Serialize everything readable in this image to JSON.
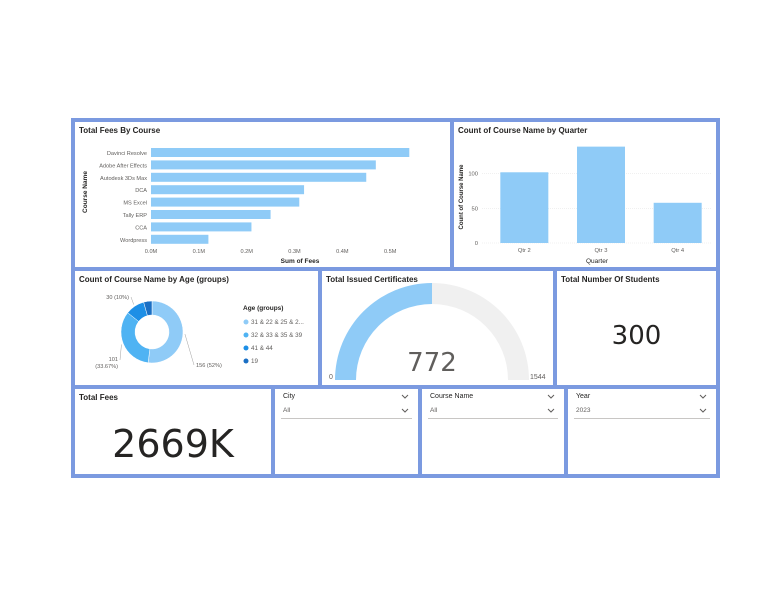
{
  "fees_by_course": {
    "title": "Total Fees By Course",
    "chart_data": {
      "type": "bar",
      "orientation": "horizontal",
      "title": "Total Fees By Course",
      "xlabel": "Sum of Fees",
      "ylabel": "Course Name",
      "categories": [
        "Davinci Resolve",
        "Adobe After Effects",
        "Autodesk 3Ds Max",
        "DCA",
        "MS Excel",
        "Tally ERP",
        "CCA",
        "Wordpress"
      ],
      "values": [
        0.54,
        0.47,
        0.45,
        0.32,
        0.31,
        0.25,
        0.21,
        0.12
      ],
      "ticks": [
        "0.0M",
        "0.1M",
        "0.2M",
        "0.3M",
        "0.4M",
        "0.5M"
      ],
      "xlim": [
        0,
        0.6
      ],
      "color": "#8fcbf7"
    }
  },
  "course_by_quarter": {
    "title": "Count of Course Name by Quarter",
    "chart_data": {
      "type": "bar",
      "title": "Count of Course Name by Quarter",
      "xlabel": "Quarter",
      "ylabel": "Count of Course Name",
      "categories": [
        "Qtr 2",
        "Qtr 3",
        "Qtr 4"
      ],
      "values": [
        102,
        139,
        58
      ],
      "ticks": [
        "0",
        "50",
        "100"
      ],
      "ylim": [
        0,
        150
      ],
      "color": "#8fcbf7"
    }
  },
  "age_groups": {
    "title": "Count of Course Name by Age (groups)",
    "chart_data": {
      "type": "pie",
      "variant": "donut",
      "title": "Count of Course Name by Age (groups)",
      "legend_title": "Age (groups)",
      "slices": [
        {
          "name": "31 & 22 & 25 & 2...",
          "value": 156,
          "label": "156 (52%)",
          "color": "#8fcbf7"
        },
        {
          "name": "32 & 33 & 35 & 39",
          "value": 101,
          "label": "101 (33.67%)",
          "color": "#4fb3f3"
        },
        {
          "name": "41 & 44",
          "value": 30,
          "label": "30 (10%)",
          "color": "#1d8fe6"
        },
        {
          "name": "19",
          "value": 13,
          "label": "",
          "color": "#1a6fc4"
        }
      ]
    }
  },
  "certificates": {
    "title": "Total Issued Certificates",
    "value": "772",
    "min": "0",
    "max": "1544",
    "fraction": 0.5,
    "fill_color": "#8fcbf7",
    "track_color": "#f0f0f0"
  },
  "students": {
    "title": "Total Number Of Students",
    "value": "300"
  },
  "fees_total": {
    "title": "Total Fees",
    "value": "2669K"
  },
  "slicers": {
    "city": {
      "label": "City",
      "value": "All"
    },
    "course": {
      "label": "Course Name",
      "value": "All"
    },
    "year": {
      "label": "Year",
      "value": "2023"
    }
  }
}
